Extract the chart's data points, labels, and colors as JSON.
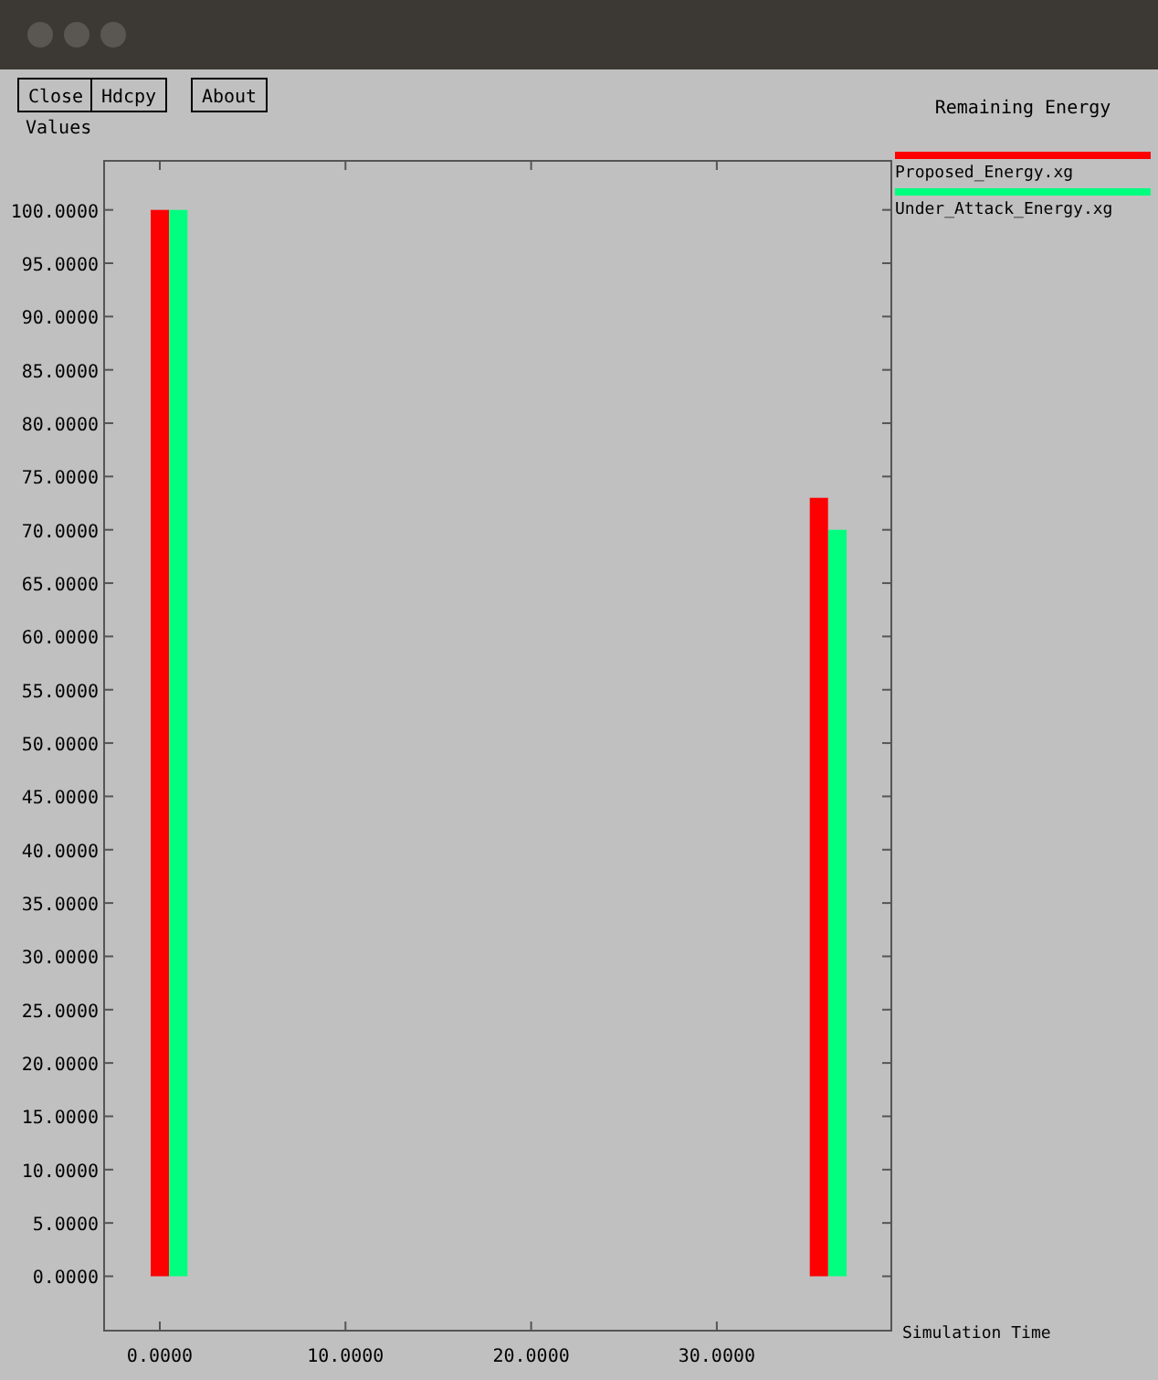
{
  "chart_data": {
    "type": "bar",
    "title": "Remaining Energy",
    "xlabel": "Simulation Time",
    "ylabel": "Values",
    "annotations": [
      "Close",
      "Hdcpy",
      "About"
    ],
    "xlim": [
      -3,
      39.4
    ],
    "ylim": [
      -5.1,
      104.6
    ],
    "xticks": [
      {
        "value": 0,
        "label": "0.0000"
      },
      {
        "value": 10,
        "label": "10.0000"
      },
      {
        "value": 20,
        "label": "20.0000"
      },
      {
        "value": 30,
        "label": "30.0000"
      }
    ],
    "yticks": [
      {
        "value": 0,
        "label": "0.0000"
      },
      {
        "value": 5,
        "label": "5.0000"
      },
      {
        "value": 10,
        "label": "10.0000"
      },
      {
        "value": 15,
        "label": "15.0000"
      },
      {
        "value": 20,
        "label": "20.0000"
      },
      {
        "value": 25,
        "label": "25.0000"
      },
      {
        "value": 30,
        "label": "30.0000"
      },
      {
        "value": 35,
        "label": "35.0000"
      },
      {
        "value": 40,
        "label": "40.0000"
      },
      {
        "value": 45,
        "label": "45.0000"
      },
      {
        "value": 50,
        "label": "50.0000"
      },
      {
        "value": 55,
        "label": "55.0000"
      },
      {
        "value": 60,
        "label": "60.0000"
      },
      {
        "value": 65,
        "label": "65.0000"
      },
      {
        "value": 70,
        "label": "70.0000"
      },
      {
        "value": 75,
        "label": "75.0000"
      },
      {
        "value": 80,
        "label": "80.0000"
      },
      {
        "value": 85,
        "label": "85.0000"
      },
      {
        "value": 90,
        "label": "90.0000"
      },
      {
        "value": 95,
        "label": "95.0000"
      },
      {
        "value": 100,
        "label": "100.0000"
      }
    ],
    "grid": false,
    "legend": "right",
    "series": [
      {
        "name": "Proposed_Energy.xg",
        "color": "#ff0000",
        "x": [
          0,
          35.5
        ],
        "values": [
          100,
          73
        ]
      },
      {
        "name": "Under_Attack_Energy.xg",
        "color": "#00ff7f",
        "x": [
          1,
          36.5
        ],
        "values": [
          100,
          70
        ]
      }
    ]
  }
}
